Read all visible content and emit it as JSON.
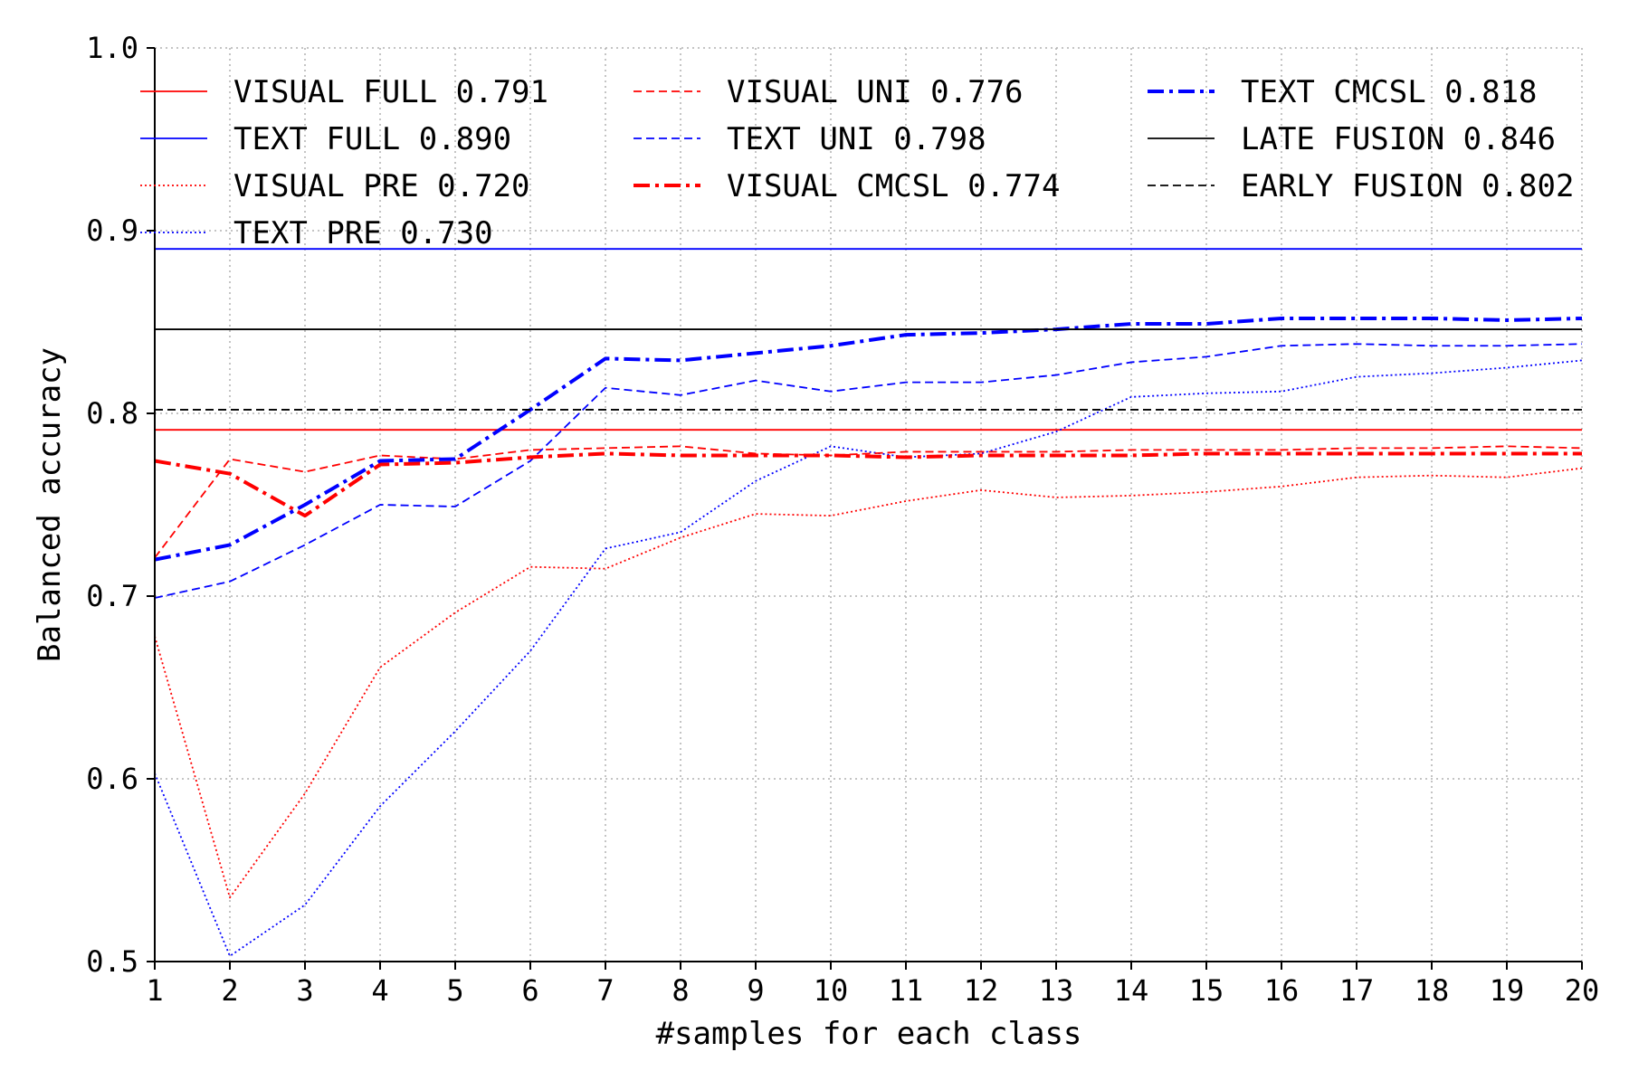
{
  "chart_data": {
    "type": "line",
    "title": "",
    "xlabel": "#samples for each class",
    "ylabel": "Balanced accuracy",
    "xlim": [
      1,
      20
    ],
    "ylim": [
      0.5,
      1.0
    ],
    "x_ticks": [
      1,
      2,
      3,
      4,
      5,
      6,
      7,
      8,
      9,
      10,
      11,
      12,
      13,
      14,
      15,
      16,
      17,
      18,
      19,
      20
    ],
    "y_ticks": [
      0.5,
      0.6,
      0.7,
      0.8,
      0.9,
      1.0
    ],
    "y_tick_labels": [
      "0.5",
      "0.6",
      "0.7",
      "0.8",
      "0.9",
      "1.0"
    ],
    "grid": true,
    "legend_position": "top",
    "x": [
      1,
      2,
      3,
      4,
      5,
      6,
      7,
      8,
      9,
      10,
      11,
      12,
      13,
      14,
      15,
      16,
      17,
      18,
      19,
      20
    ],
    "series": [
      {
        "name": "VISUAL FULL 0.791",
        "color": "#ff0000",
        "style": "solid",
        "width": "thin",
        "values": [
          0.791,
          0.791,
          0.791,
          0.791,
          0.791,
          0.791,
          0.791,
          0.791,
          0.791,
          0.791,
          0.791,
          0.791,
          0.791,
          0.791,
          0.791,
          0.791,
          0.791,
          0.791,
          0.791,
          0.791
        ]
      },
      {
        "name": "TEXT FULL 0.890",
        "color": "#0000ff",
        "style": "solid",
        "width": "thin",
        "values": [
          0.89,
          0.89,
          0.89,
          0.89,
          0.89,
          0.89,
          0.89,
          0.89,
          0.89,
          0.89,
          0.89,
          0.89,
          0.89,
          0.89,
          0.89,
          0.89,
          0.89,
          0.89,
          0.89,
          0.89
        ]
      },
      {
        "name": "VISUAL PRE 0.720",
        "color": "#ff0000",
        "style": "dotted",
        "width": "thin",
        "values": [
          0.678,
          0.535,
          0.592,
          0.661,
          0.691,
          0.716,
          0.715,
          0.732,
          0.745,
          0.744,
          0.752,
          0.758,
          0.754,
          0.755,
          0.757,
          0.76,
          0.765,
          0.766,
          0.765,
          0.77
        ]
      },
      {
        "name": "TEXT PRE 0.730",
        "color": "#0000ff",
        "style": "dotted",
        "width": "thin",
        "values": [
          0.603,
          0.503,
          0.531,
          0.585,
          0.626,
          0.67,
          0.726,
          0.735,
          0.763,
          0.782,
          0.776,
          0.778,
          0.79,
          0.809,
          0.811,
          0.812,
          0.82,
          0.822,
          0.825,
          0.829
        ]
      },
      {
        "name": "VISUAL UNI 0.776",
        "color": "#ff0000",
        "style": "dashed",
        "width": "thin",
        "values": [
          0.721,
          0.775,
          0.768,
          0.777,
          0.775,
          0.78,
          0.781,
          0.782,
          0.778,
          0.777,
          0.779,
          0.779,
          0.779,
          0.78,
          0.78,
          0.78,
          0.781,
          0.781,
          0.782,
          0.781
        ]
      },
      {
        "name": "TEXT UNI 0.798",
        "color": "#0000ff",
        "style": "dashed",
        "width": "thin",
        "values": [
          0.699,
          0.708,
          0.728,
          0.75,
          0.749,
          0.774,
          0.814,
          0.81,
          0.818,
          0.812,
          0.817,
          0.817,
          0.821,
          0.828,
          0.831,
          0.837,
          0.838,
          0.837,
          0.837,
          0.838
        ]
      },
      {
        "name": "VISUAL CMCSL 0.774",
        "color": "#ff0000",
        "style": "dashdot",
        "width": "thick",
        "values": [
          0.774,
          0.767,
          0.744,
          0.772,
          0.773,
          0.776,
          0.778,
          0.777,
          0.777,
          0.777,
          0.776,
          0.777,
          0.777,
          0.777,
          0.778,
          0.778,
          0.778,
          0.778,
          0.778,
          0.778
        ]
      },
      {
        "name": "TEXT CMCSL 0.818",
        "color": "#0000ff",
        "style": "dashdot",
        "width": "thick",
        "values": [
          0.72,
          0.728,
          0.75,
          0.774,
          0.775,
          0.802,
          0.83,
          0.829,
          0.833,
          0.837,
          0.843,
          0.844,
          0.846,
          0.849,
          0.849,
          0.852,
          0.852,
          0.852,
          0.851,
          0.852
        ]
      },
      {
        "name": "LATE FUSION 0.846",
        "color": "#000000",
        "style": "solid",
        "width": "thin",
        "values": [
          0.846,
          0.846,
          0.846,
          0.846,
          0.846,
          0.846,
          0.846,
          0.846,
          0.846,
          0.846,
          0.846,
          0.846,
          0.846,
          0.846,
          0.846,
          0.846,
          0.846,
          0.846,
          0.846,
          0.846
        ]
      },
      {
        "name": "EARLY FUSION 0.802",
        "color": "#000000",
        "style": "dashed",
        "width": "thin",
        "values": [
          0.802,
          0.802,
          0.802,
          0.802,
          0.802,
          0.802,
          0.802,
          0.802,
          0.802,
          0.802,
          0.802,
          0.802,
          0.802,
          0.802,
          0.802,
          0.802,
          0.802,
          0.802,
          0.802,
          0.802
        ]
      }
    ],
    "legend_columns": [
      [
        "VISUAL FULL 0.791",
        "TEXT FULL 0.890",
        "VISUAL PRE 0.720",
        "TEXT PRE 0.730"
      ],
      [
        "VISUAL UNI 0.776",
        "TEXT UNI 0.798",
        "VISUAL CMCSL 0.774"
      ],
      [
        "TEXT CMCSL 0.818",
        "LATE FUSION 0.846",
        "EARLY FUSION 0.802"
      ]
    ]
  }
}
